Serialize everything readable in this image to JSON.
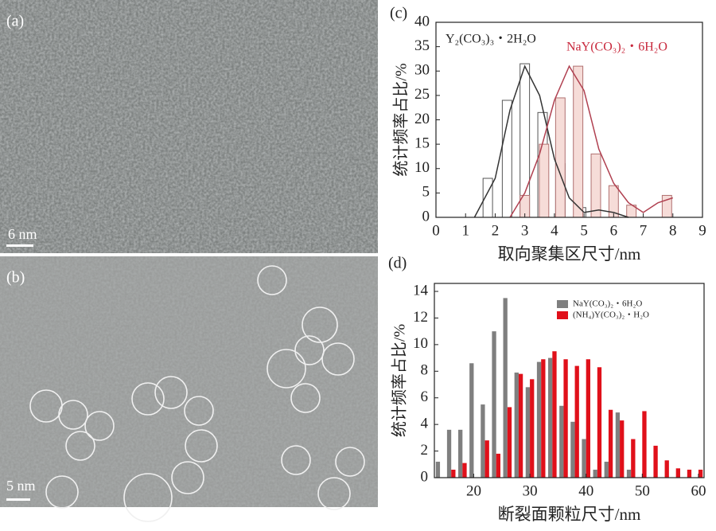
{
  "images": [
    {
      "label": "(a)",
      "scale_bar": "6 nm"
    },
    {
      "label": "(b)",
      "scale_bar": "5 nm"
    }
  ],
  "chart_data": [
    {
      "type": "bar",
      "label": "(c)",
      "x_label": "取向聚集区尺寸/nm",
      "y_label": "统计频率占比/%",
      "xlim": [
        0,
        9
      ],
      "xticks": [
        0,
        1,
        2,
        3,
        4,
        5,
        6,
        7,
        8,
        9
      ],
      "ylim": [
        0,
        40
      ],
      "yticks": [
        0,
        5,
        10,
        15,
        20,
        25,
        30,
        35,
        40
      ],
      "annotations": [
        {
          "text": "Y₂(CO₃)₃・2H₂O",
          "color": "#222222"
        },
        {
          "text": "NaY(CO₃)₂・6H₂O",
          "color": "#c8283c"
        }
      ],
      "series": [
        {
          "type": "bar",
          "color": "#ffffff",
          "edge": "#555555",
          "x": [
            1.75,
            2.4,
            3.0,
            3.6,
            4.2,
            4.9
          ],
          "values": [
            8,
            24,
            31.5,
            21.5,
            11,
            2
          ]
        },
        {
          "type": "bar",
          "color": "#f6dcd8",
          "edge": "#b07070",
          "x": [
            3.0,
            3.65,
            4.2,
            4.8,
            5.4,
            6.0,
            6.6,
            7.8
          ],
          "values": [
            4.5,
            15,
            24.5,
            31,
            13,
            6.5,
            2.5,
            4.5
          ]
        },
        {
          "type": "line",
          "color": "#333333",
          "x": [
            1.3,
            2,
            2.5,
            3,
            3.5,
            4,
            4.5,
            5,
            5.5,
            6,
            6.5
          ],
          "values": [
            0,
            8,
            22,
            31,
            25,
            12,
            4,
            1,
            1.5,
            1,
            0
          ]
        },
        {
          "type": "line",
          "color": "#b04050",
          "x": [
            2.5,
            3,
            3.5,
            4,
            4.5,
            5,
            5.5,
            6,
            6.5,
            7,
            7.5,
            8
          ],
          "values": [
            0,
            5,
            13,
            24,
            31,
            26,
            14,
            7,
            3,
            1,
            3,
            4
          ]
        }
      ]
    },
    {
      "type": "bar",
      "label": "(d)",
      "x_label": "断裂面颗粒尺寸/nm",
      "y_label": "统计频率占比/%",
      "xlim": [
        13,
        61
      ],
      "xticks": [
        20,
        30,
        40,
        50,
        60
      ],
      "ylim": [
        0,
        14.6
      ],
      "yticks": [
        0,
        2,
        4,
        6,
        8,
        10,
        12,
        14
      ],
      "series": [
        {
          "type": "bar",
          "name": "NaY(CO₃)₂・6H₂O",
          "color": "#7f7f7f",
          "x": [
            14,
            16,
            18,
            20,
            22,
            24,
            26,
            28,
            30,
            32,
            34,
            36,
            38,
            40,
            42,
            44,
            46,
            48
          ],
          "values": [
            1.2,
            3.6,
            3.6,
            8.6,
            5.5,
            11,
            13.5,
            7.9,
            6.8,
            8.7,
            9,
            5.4,
            4.2,
            2.9,
            0.6,
            1.2,
            4.9,
            0.6
          ]
        },
        {
          "type": "bar",
          "name": "(NH₄)Y(CO₃)₂・H₂O",
          "color": "#e0101a",
          "x": [
            16,
            18,
            22,
            24,
            26,
            28,
            30,
            32,
            34,
            36,
            38,
            40,
            42,
            44,
            46,
            48,
            50,
            52,
            54,
            56,
            58,
            60
          ],
          "values": [
            0.6,
            1.1,
            2.8,
            1.8,
            5.3,
            7.8,
            7.4,
            8.9,
            9.5,
            8.9,
            8.4,
            8.9,
            8.3,
            5.1,
            4.3,
            2.9,
            5.0,
            2.4,
            1.3,
            0.7,
            0.6,
            0.6
          ]
        }
      ]
    }
  ]
}
